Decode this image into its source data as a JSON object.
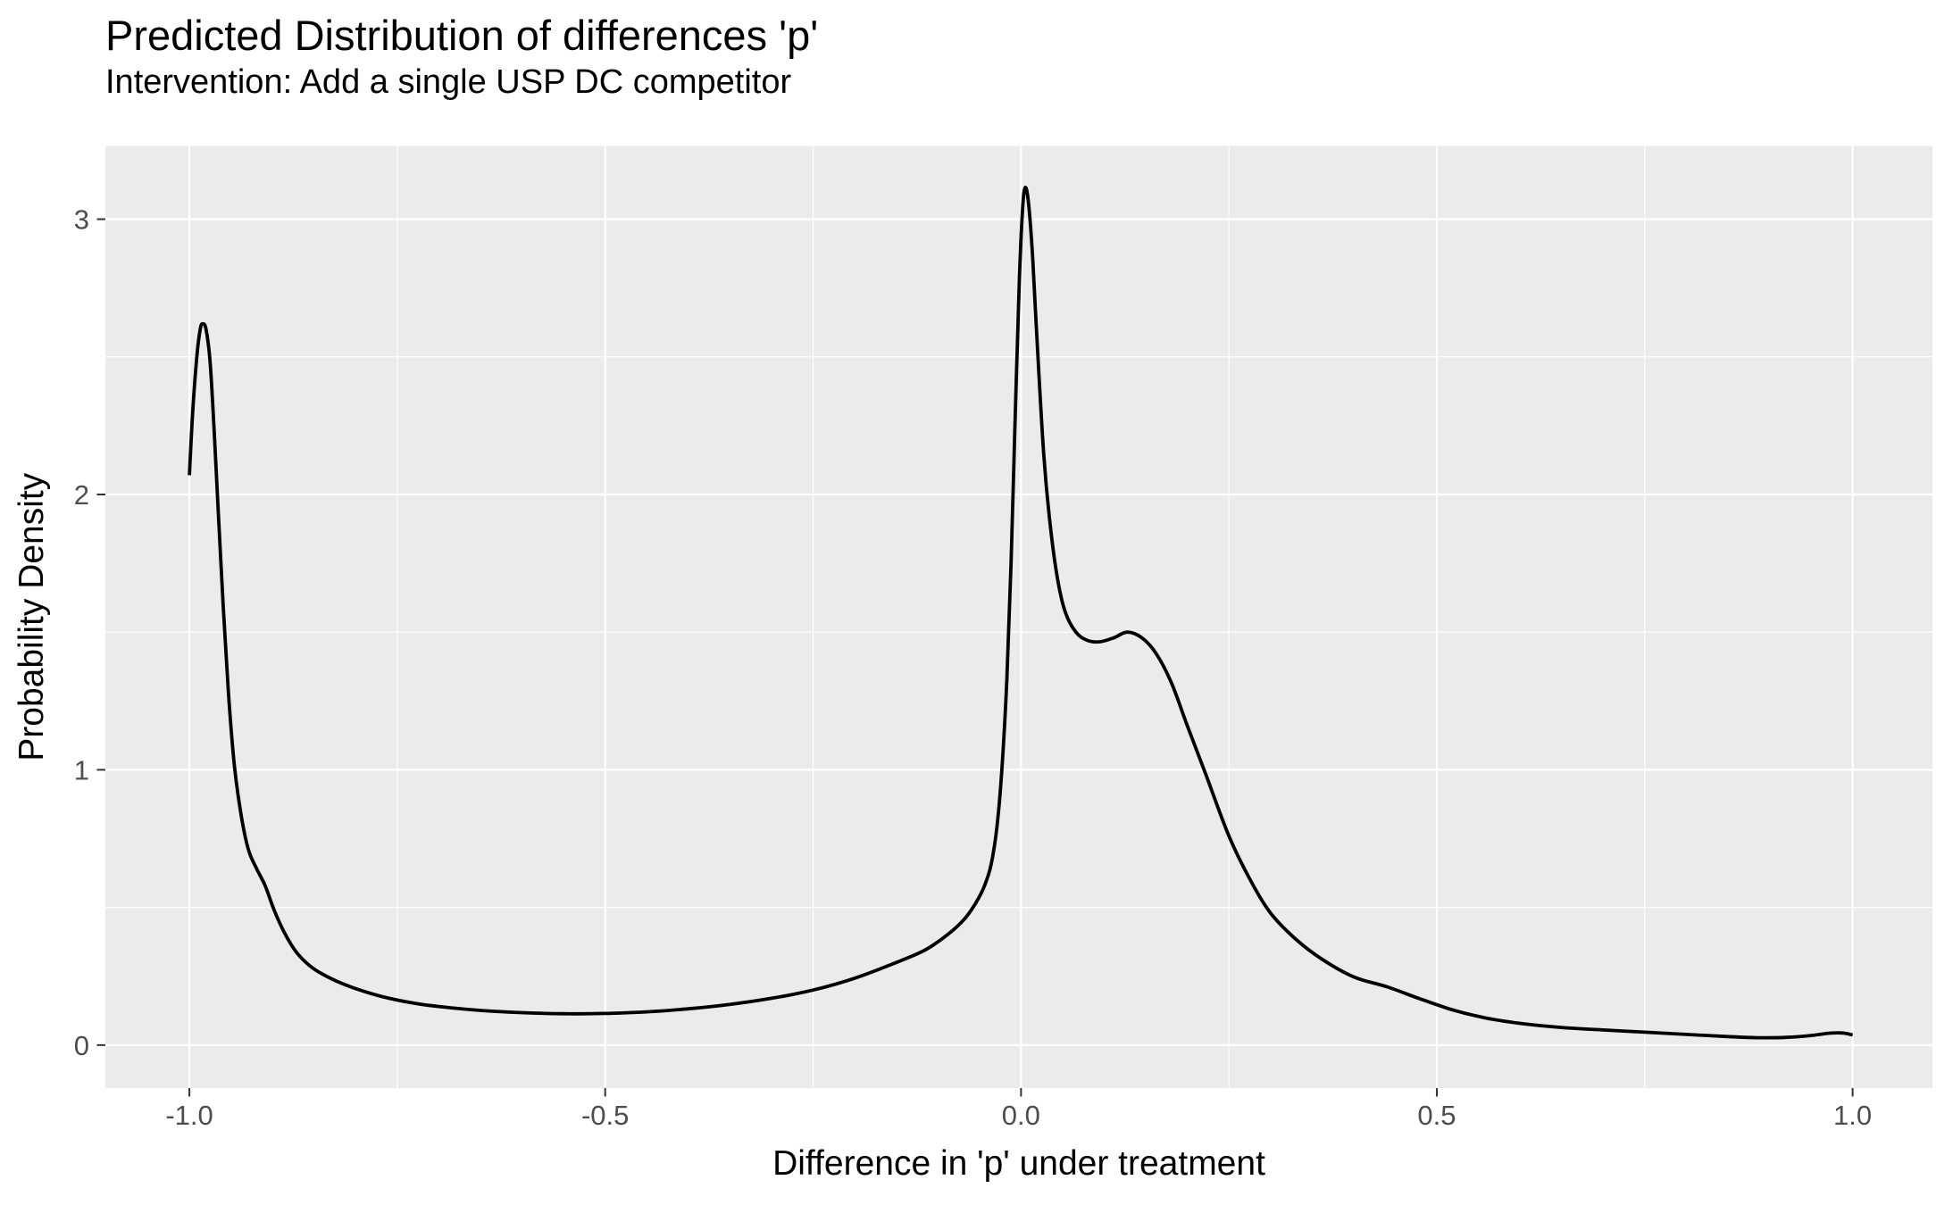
{
  "chart_data": {
    "type": "line",
    "title": "Predicted Distribution of differences 'p'",
    "subtitle": "Intervention: Add a single USP DC competitor",
    "xlabel": "Difference in 'p' under treatment",
    "ylabel": "Probability Density",
    "xlim": [
      -1.101,
      1.096
    ],
    "ylim": [
      -0.156,
      3.266
    ],
    "grid": "on",
    "legend": "none",
    "x_major_ticks": [
      {
        "value": -1.0,
        "label": "-1.0"
      },
      {
        "value": -0.5,
        "label": "-0.5"
      },
      {
        "value": 0.0,
        "label": "0.0"
      },
      {
        "value": 0.5,
        "label": "0.5"
      },
      {
        "value": 1.0,
        "label": "1.0"
      }
    ],
    "x_minor_ticks": [
      -0.75,
      -0.25,
      0.25,
      0.75
    ],
    "y_major_ticks": [
      {
        "value": 0,
        "label": "0"
      },
      {
        "value": 1,
        "label": "1"
      },
      {
        "value": 2,
        "label": "2"
      },
      {
        "value": 3,
        "label": "3"
      }
    ],
    "y_minor_ticks": [
      0.5,
      1.5,
      2.5
    ],
    "colors": {
      "panel_bg": "#EBEBEB",
      "grid": "#FFFFFF",
      "curve": "#000000",
      "tick_mark": "#333333",
      "tick_label": "#4D4D4D",
      "text": "#000000",
      "page_bg": "#FFFFFF"
    },
    "series": [
      {
        "name": "density",
        "points": [
          [
            -1.0,
            2.07
          ],
          [
            -0.996,
            2.3
          ],
          [
            -0.991,
            2.5
          ],
          [
            -0.987,
            2.6
          ],
          [
            -0.984,
            2.62
          ],
          [
            -0.98,
            2.6
          ],
          [
            -0.975,
            2.48
          ],
          [
            -0.97,
            2.22
          ],
          [
            -0.965,
            1.92
          ],
          [
            -0.959,
            1.58
          ],
          [
            -0.953,
            1.28
          ],
          [
            -0.946,
            1.02
          ],
          [
            -0.938,
            0.84
          ],
          [
            -0.929,
            0.71
          ],
          [
            -0.919,
            0.64
          ],
          [
            -0.909,
            0.58
          ],
          [
            -0.898,
            0.49
          ],
          [
            -0.886,
            0.41
          ],
          [
            -0.872,
            0.34
          ],
          [
            -0.856,
            0.29
          ],
          [
            -0.84,
            0.258
          ],
          [
            -0.815,
            0.222
          ],
          [
            -0.79,
            0.195
          ],
          [
            -0.76,
            0.17
          ],
          [
            -0.725,
            0.15
          ],
          [
            -0.69,
            0.137
          ],
          [
            -0.65,
            0.126
          ],
          [
            -0.6,
            0.118
          ],
          [
            -0.55,
            0.114
          ],
          [
            -0.5,
            0.115
          ],
          [
            -0.45,
            0.121
          ],
          [
            -0.4,
            0.132
          ],
          [
            -0.35,
            0.148
          ],
          [
            -0.3,
            0.17
          ],
          [
            -0.25,
            0.2
          ],
          [
            -0.2,
            0.243
          ],
          [
            -0.15,
            0.3
          ],
          [
            -0.115,
            0.346
          ],
          [
            -0.088,
            0.402
          ],
          [
            -0.068,
            0.458
          ],
          [
            -0.054,
            0.518
          ],
          [
            -0.044,
            0.578
          ],
          [
            -0.036,
            0.655
          ],
          [
            -0.029,
            0.79
          ],
          [
            -0.023,
            1.0
          ],
          [
            -0.017,
            1.33
          ],
          [
            -0.012,
            1.75
          ],
          [
            -0.007,
            2.28
          ],
          [
            -0.002,
            2.78
          ],
          [
            0.002,
            3.04
          ],
          [
            0.005,
            3.115
          ],
          [
            0.009,
            3.06
          ],
          [
            0.014,
            2.86
          ],
          [
            0.02,
            2.52
          ],
          [
            0.027,
            2.16
          ],
          [
            0.034,
            1.92
          ],
          [
            0.043,
            1.71
          ],
          [
            0.053,
            1.575
          ],
          [
            0.066,
            1.5
          ],
          [
            0.08,
            1.47
          ],
          [
            0.095,
            1.465
          ],
          [
            0.112,
            1.48
          ],
          [
            0.128,
            1.5
          ],
          [
            0.146,
            1.478
          ],
          [
            0.163,
            1.42
          ],
          [
            0.181,
            1.315
          ],
          [
            0.2,
            1.16
          ],
          [
            0.222,
            0.985
          ],
          [
            0.25,
            0.76
          ],
          [
            0.276,
            0.598
          ],
          [
            0.3,
            0.48
          ],
          [
            0.33,
            0.386
          ],
          [
            0.362,
            0.312
          ],
          [
            0.4,
            0.248
          ],
          [
            0.44,
            0.212
          ],
          [
            0.48,
            0.168
          ],
          [
            0.52,
            0.127
          ],
          [
            0.56,
            0.098
          ],
          [
            0.6,
            0.079
          ],
          [
            0.65,
            0.064
          ],
          [
            0.7,
            0.055
          ],
          [
            0.75,
            0.047
          ],
          [
            0.8,
            0.039
          ],
          [
            0.85,
            0.031
          ],
          [
            0.885,
            0.027
          ],
          [
            0.92,
            0.028
          ],
          [
            0.95,
            0.035
          ],
          [
            0.971,
            0.043
          ],
          [
            0.988,
            0.044
          ],
          [
            1.0,
            0.037
          ]
        ]
      }
    ]
  }
}
